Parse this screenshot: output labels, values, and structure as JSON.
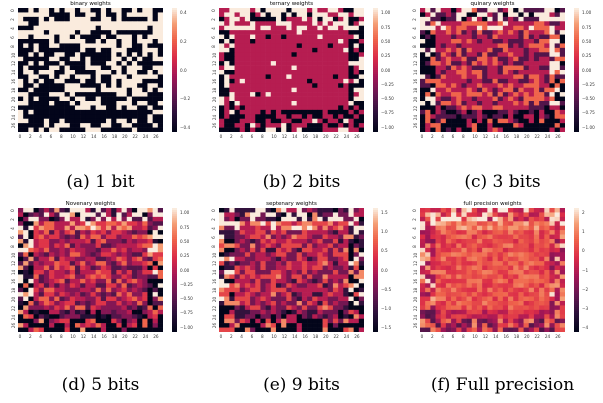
{
  "figure": {
    "panels": [
      {
        "id": "a",
        "title": "binary weights",
        "caption": "(a) 1 bit",
        "colorbar_ticks": [
          "0.4",
          "0.2",
          "0.0",
          "−0.2",
          "−0.4"
        ],
        "vmin": -0.5,
        "vmax": 0.5
      },
      {
        "id": "b",
        "title": "ternary weights",
        "caption": "(b) 2 bits",
        "colorbar_ticks": [
          "1.00",
          "0.75",
          "0.50",
          "0.25",
          "0.00",
          "−0.25",
          "−0.50",
          "−0.75",
          "−1.00"
        ],
        "vmin": -1.0,
        "vmax": 1.0
      },
      {
        "id": "c",
        "title": "quinary weights",
        "caption": "(c) 3 bits",
        "colorbar_ticks": [
          "1.00",
          "0.75",
          "0.50",
          "0.25",
          "0.00",
          "−0.25",
          "−0.50",
          "−0.75",
          "−1.00"
        ],
        "vmin": -1.0,
        "vmax": 1.0
      },
      {
        "id": "d",
        "title": "Novenary weights",
        "caption": "(d) 5 bits",
        "colorbar_ticks": [
          "1.00",
          "0.75",
          "0.50",
          "0.25",
          "0.00",
          "−0.25",
          "−0.50",
          "−0.75",
          "−1.00"
        ],
        "vmin": -1.0,
        "vmax": 1.0
      },
      {
        "id": "e",
        "title": "septenary weights",
        "caption": "(e) 9 bits",
        "colorbar_ticks": [
          "1.5",
          "1.0",
          "0.5",
          "0.0",
          "−0.5",
          "−1.0",
          "−1.5"
        ],
        "vmin": -1.5,
        "vmax": 1.5
      },
      {
        "id": "f",
        "title": "full precision weights",
        "caption": "(f) Full precision",
        "colorbar_ticks": [
          "2",
          "1",
          "0",
          "−1",
          "−2",
          "−3",
          "−4"
        ],
        "vmin": -4.5,
        "vmax": 2.5
      }
    ],
    "x_ticks": [
      "0",
      "2",
      "4",
      "6",
      "8",
      "10",
      "12",
      "14",
      "16",
      "18",
      "20",
      "22",
      "24",
      "26"
    ],
    "y_ticks": [
      "0",
      "2",
      "4",
      "6",
      "8",
      "10",
      "12",
      "14",
      "16",
      "18",
      "20",
      "22",
      "24",
      "26"
    ]
  },
  "chart_data": [
    {
      "type": "heatmap",
      "title": "binary weights",
      "grid_size": [
        28,
        28
      ],
      "levels": [
        -0.5,
        0.5
      ],
      "colorbar_range": [
        -0.5,
        0.5
      ],
      "colormap": "rocket"
    },
    {
      "type": "heatmap",
      "title": "ternary weights",
      "grid_size": [
        28,
        28
      ],
      "levels": [
        -1,
        0,
        1
      ],
      "colorbar_range": [
        -1.0,
        1.0
      ],
      "colormap": "rocket"
    },
    {
      "type": "heatmap",
      "title": "quinary weights",
      "grid_size": [
        28,
        28
      ],
      "levels": [
        -1,
        -0.5,
        0,
        0.5,
        1
      ],
      "colorbar_range": [
        -1.0,
        1.0
      ],
      "colormap": "rocket"
    },
    {
      "type": "heatmap",
      "title": "Novenary weights",
      "grid_size": [
        28,
        28
      ],
      "levels": [
        -1,
        -0.75,
        -0.5,
        -0.25,
        0,
        0.25,
        0.5,
        0.75,
        1
      ],
      "colorbar_range": [
        -1.0,
        1.0
      ],
      "colormap": "rocket"
    },
    {
      "type": "heatmap",
      "title": "septenary weights",
      "grid_size": [
        28,
        28
      ],
      "levels": [
        -1.5,
        -1.0,
        -0.5,
        0,
        0.5,
        1.0,
        1.5
      ],
      "colorbar_range": [
        -1.5,
        1.5
      ],
      "colormap": "rocket"
    },
    {
      "type": "heatmap",
      "title": "full precision weights",
      "grid_size": [
        28,
        28
      ],
      "levels": "continuous",
      "colorbar_range": [
        -4.5,
        2.5
      ],
      "colormap": "rocket"
    }
  ]
}
